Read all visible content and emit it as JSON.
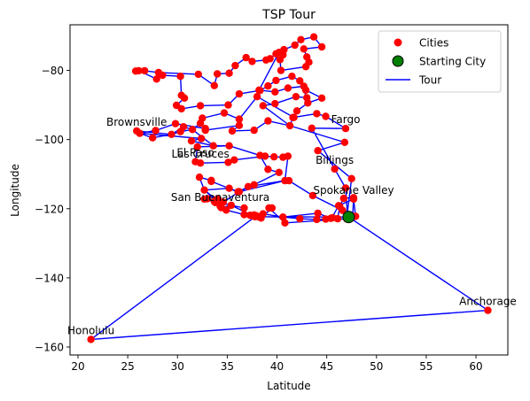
{
  "chart_data": {
    "type": "scatter",
    "title": "TSP Tour",
    "xlabel": "Latitude",
    "ylabel": "Longitude",
    "xlim": [
      19.2,
      63.2
    ],
    "ylim": [
      -162.3,
      -66.8
    ],
    "xticks": [
      20,
      25,
      30,
      35,
      40,
      45,
      50,
      55,
      60
    ],
    "yticks": [
      -160,
      -140,
      -120,
      -100,
      -80
    ],
    "grid": false,
    "legend": {
      "position": "top-right",
      "entries": [
        {
          "label": "Cities",
          "marker": "circle",
          "color": "#ff0000"
        },
        {
          "label": "Starting City",
          "marker": "circle",
          "color": "#008000",
          "edge": "#000000"
        },
        {
          "label": "Tour",
          "marker": "line",
          "color": "#0000ff"
        }
      ]
    },
    "starting_city": {
      "x": 47.2,
      "y": -122.4
    },
    "labeled_cities": [
      {
        "name": "Honolulu",
        "x": 21.3,
        "y": -157.8
      },
      {
        "name": "Anchorage",
        "x": 61.2,
        "y": -149.4
      },
      {
        "name": "Billings",
        "x": 45.8,
        "y": -108.5
      },
      {
        "name": "Spokane Valley",
        "x": 47.7,
        "y": -117.2
      },
      {
        "name": "San Buenaventura",
        "x": 34.3,
        "y": -119.3
      },
      {
        "name": "Las Cruces",
        "x": 32.3,
        "y": -106.8
      },
      {
        "name": "El Paso",
        "x": 31.8,
        "y": -106.4
      },
      {
        "name": "Fargo",
        "x": 46.9,
        "y": -96.8
      },
      {
        "name": "Brownsville",
        "x": 25.9,
        "y": -97.5
      }
    ],
    "tour": [
      [
        47.2,
        -122.4
      ],
      [
        47.6,
        -122.3
      ],
      [
        47.9,
        -122.2
      ],
      [
        47.7,
        -117.2
      ],
      [
        46.2,
        -119.1
      ],
      [
        45.5,
        -122.7
      ],
      [
        45.6,
        -122.6
      ],
      [
        44.9,
        -123.0
      ],
      [
        44.0,
        -123.1
      ],
      [
        42.3,
        -122.9
      ],
      [
        40.6,
        -122.4
      ],
      [
        38.6,
        -121.5
      ],
      [
        37.8,
        -122.3
      ],
      [
        37.3,
        -121.9
      ],
      [
        36.7,
        -121.7
      ],
      [
        36.7,
        -119.8
      ],
      [
        35.4,
        -119.0
      ],
      [
        34.4,
        -119.7
      ],
      [
        34.3,
        -119.3
      ],
      [
        34.1,
        -118.2
      ],
      [
        33.8,
        -118.2
      ],
      [
        33.7,
        -117.9
      ],
      [
        32.7,
        -117.2
      ],
      [
        33.0,
        -117.1
      ],
      [
        33.9,
        -117.4
      ],
      [
        34.1,
        -117.3
      ],
      [
        34.6,
        -118.1
      ],
      [
        36.2,
        -115.1
      ],
      [
        36.1,
        -115.2
      ],
      [
        37.1,
        -113.6
      ],
      [
        40.8,
        -111.9
      ],
      [
        41.2,
        -111.9
      ],
      [
        43.6,
        -116.2
      ],
      [
        46.6,
        -120.5
      ],
      [
        47.1,
        -122.2
      ],
      [
        46.9,
        -114.0
      ],
      [
        45.8,
        -108.5
      ],
      [
        43.5,
        -96.7
      ],
      [
        46.9,
        -96.8
      ],
      [
        44.9,
        -93.3
      ],
      [
        44.0,
        -92.5
      ],
      [
        41.6,
        -93.6
      ],
      [
        41.3,
        -96.0
      ],
      [
        39.1,
        -94.6
      ],
      [
        37.7,
        -97.3
      ],
      [
        35.5,
        -97.5
      ],
      [
        36.2,
        -95.9
      ],
      [
        32.8,
        -97.3
      ],
      [
        32.8,
        -96.8
      ],
      [
        29.8,
        -95.4
      ],
      [
        27.8,
        -97.4
      ],
      [
        26.2,
        -98.2
      ],
      [
        25.9,
        -97.5
      ],
      [
        29.4,
        -98.5
      ],
      [
        30.3,
        -97.7
      ],
      [
        31.5,
        -97.1
      ],
      [
        33.6,
        -101.8
      ],
      [
        35.2,
        -101.8
      ],
      [
        32.0,
        -102.1
      ],
      [
        31.8,
        -106.4
      ],
      [
        32.3,
        -106.8
      ],
      [
        35.1,
        -106.6
      ],
      [
        35.7,
        -105.9
      ],
      [
        38.8,
        -104.8
      ],
      [
        39.7,
        -105.0
      ],
      [
        40.6,
        -105.1
      ],
      [
        41.1,
        -104.8
      ],
      [
        40.8,
        -111.9
      ],
      [
        36.1,
        -115.2
      ],
      [
        33.4,
        -112.1
      ],
      [
        33.4,
        -111.8
      ],
      [
        32.2,
        -110.9
      ],
      [
        32.7,
        -114.6
      ],
      [
        34.9,
        -120.4
      ],
      [
        36.7,
        -121.7
      ],
      [
        38.4,
        -122.7
      ],
      [
        39.5,
        -119.8
      ],
      [
        39.2,
        -119.8
      ],
      [
        40.8,
        -124.1
      ],
      [
        47.0,
        -122.9
      ],
      [
        47.5,
        -111.3
      ],
      [
        44.1,
        -103.2
      ],
      [
        46.8,
        -100.8
      ],
      [
        41.3,
        -96.0
      ],
      [
        38.6,
        -90.2
      ],
      [
        39.8,
        -89.6
      ],
      [
        41.9,
        -87.6
      ],
      [
        43.0,
        -87.9
      ],
      [
        42.3,
        -83.0
      ],
      [
        41.5,
        -81.7
      ],
      [
        39.9,
        -82.9
      ],
      [
        39.1,
        -84.5
      ],
      [
        38.3,
        -85.8
      ],
      [
        36.2,
        -86.8
      ],
      [
        35.1,
        -90.0
      ],
      [
        32.3,
        -90.2
      ],
      [
        30.4,
        -91.1
      ],
      [
        29.9,
        -90.1
      ],
      [
        30.7,
        -88.0
      ],
      [
        30.4,
        -87.2
      ],
      [
        30.3,
        -81.7
      ],
      [
        28.5,
        -81.4
      ],
      [
        27.9,
        -82.5
      ],
      [
        26.1,
        -80.1
      ],
      [
        25.8,
        -80.2
      ],
      [
        26.7,
        -80.1
      ],
      [
        28.1,
        -80.6
      ],
      [
        32.1,
        -81.1
      ],
      [
        33.7,
        -84.4
      ],
      [
        34.0,
        -81.0
      ],
      [
        35.2,
        -80.8
      ],
      [
        35.8,
        -78.6
      ],
      [
        36.9,
        -76.3
      ],
      [
        37.5,
        -77.4
      ],
      [
        38.9,
        -77.0
      ],
      [
        39.3,
        -76.6
      ],
      [
        39.9,
        -75.2
      ],
      [
        40.7,
        -74.0
      ],
      [
        41.8,
        -72.7
      ],
      [
        42.4,
        -71.1
      ],
      [
        43.7,
        -70.3
      ],
      [
        44.5,
        -73.2
      ],
      [
        42.7,
        -73.8
      ],
      [
        43.0,
        -76.1
      ],
      [
        43.2,
        -77.6
      ],
      [
        42.9,
        -78.9
      ],
      [
        40.4,
        -80.0
      ],
      [
        40.3,
        -76.9
      ],
      [
        40.6,
        -75.5
      ],
      [
        40.2,
        -74.8
      ],
      [
        38.2,
        -85.7
      ],
      [
        39.8,
        -86.2
      ],
      [
        41.1,
        -85.1
      ],
      [
        42.7,
        -84.6
      ],
      [
        42.9,
        -85.7
      ],
      [
        44.5,
        -88.0
      ],
      [
        43.1,
        -89.4
      ],
      [
        42.0,
        -91.7
      ],
      [
        41.7,
        -93.6
      ],
      [
        38.0,
        -87.6
      ],
      [
        36.2,
        -94.1
      ],
      [
        34.7,
        -92.3
      ],
      [
        32.5,
        -93.8
      ],
      [
        32.3,
        -95.3
      ],
      [
        31.5,
        -97.1
      ],
      [
        30.6,
        -96.3
      ],
      [
        29.4,
        -98.5
      ],
      [
        27.5,
        -99.5
      ],
      [
        26.2,
        -98.2
      ],
      [
        32.4,
        -99.7
      ],
      [
        31.4,
        -100.4
      ],
      [
        33.6,
        -101.8
      ],
      [
        35.2,
        -101.8
      ],
      [
        38.3,
        -104.6
      ],
      [
        39.1,
        -108.6
      ],
      [
        40.2,
        -109.5
      ],
      [
        37.7,
        -113.1
      ],
      [
        36.1,
        -115.1
      ],
      [
        35.2,
        -114.1
      ],
      [
        32.7,
        -114.6
      ],
      [
        34.0,
        -117.6
      ],
      [
        33.8,
        -117.9
      ],
      [
        34.1,
        -118.1
      ],
      [
        35.4,
        -119.0
      ],
      [
        37.6,
        -122.1
      ],
      [
        37.7,
        -121.8
      ],
      [
        37.9,
        -122.0
      ],
      [
        38.1,
        -122.3
      ],
      [
        40.6,
        -122.4
      ],
      [
        44.1,
        -121.3
      ],
      [
        45.4,
        -122.8
      ],
      [
        46.1,
        -122.9
      ],
      [
        46.3,
        -119.3
      ],
      [
        46.7,
        -117.0
      ],
      [
        47.7,
        -116.8
      ],
      [
        47.6,
        -122.2
      ],
      [
        47.2,
        -122.4
      ],
      [
        61.2,
        -149.4
      ],
      [
        21.3,
        -157.8
      ],
      [
        37.8,
        -122.3
      ],
      [
        47.2,
        -122.4
      ]
    ]
  }
}
